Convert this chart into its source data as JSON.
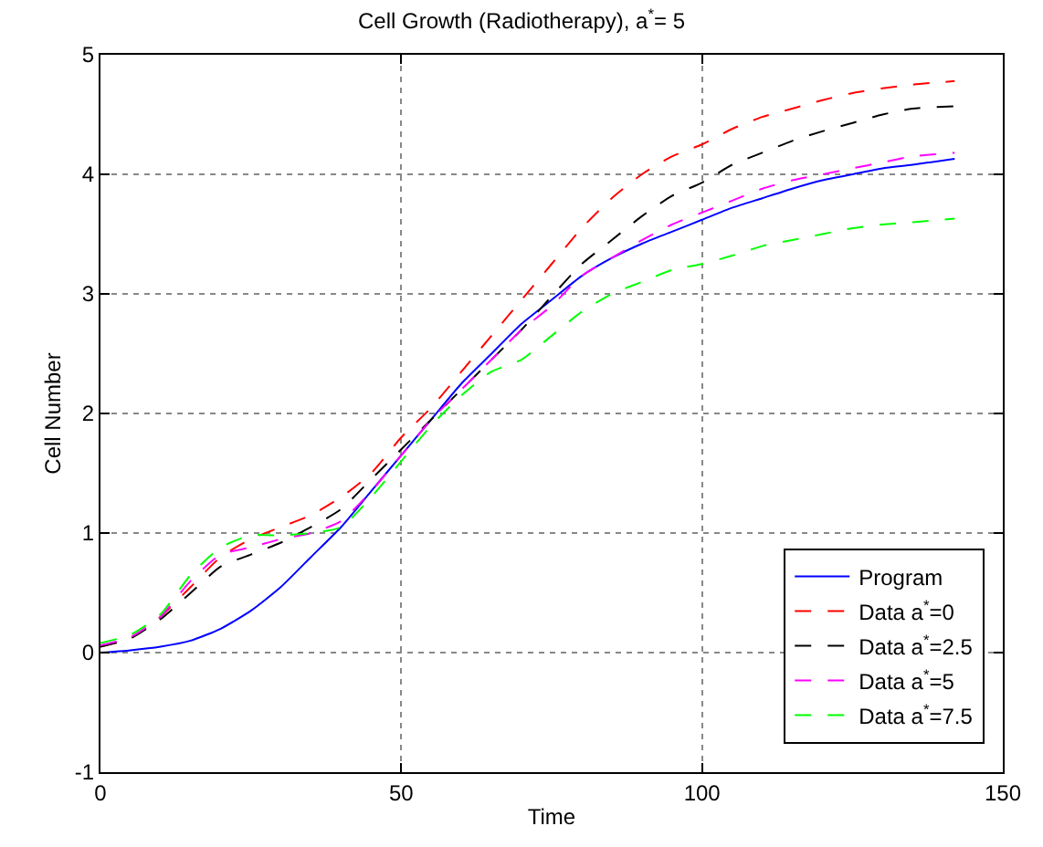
{
  "chart_data": {
    "type": "line",
    "title": "Cell Growth (Radiotherapy), a$^{*}$= 5",
    "xlabel": "Time",
    "ylabel": "Cell Number",
    "x": [
      0,
      5,
      10,
      15,
      20,
      25,
      30,
      35,
      40,
      45,
      50,
      55,
      60,
      65,
      70,
      75,
      80,
      85,
      90,
      95,
      100,
      105,
      110,
      115,
      120,
      125,
      130,
      135,
      142
    ],
    "xlim": [
      0,
      150
    ],
    "xticks": [
      0,
      50,
      100,
      150
    ],
    "ylim": [
      -1,
      5
    ],
    "yticks": [
      -1,
      0,
      1,
      2,
      3,
      4,
      5
    ],
    "grid": true,
    "legend": "bottom right",
    "series": [
      {
        "name": "Program",
        "color": "#0000ff",
        "line_style": "solid",
        "values": [
          0,
          0.02,
          0.05,
          0.1,
          0.2,
          0.35,
          0.55,
          0.8,
          1.05,
          1.35,
          1.65,
          1.95,
          2.25,
          2.5,
          2.75,
          2.95,
          3.15,
          3.3,
          3.42,
          3.52,
          3.62,
          3.72,
          3.8,
          3.88,
          3.95,
          4.0,
          4.05,
          4.08,
          4.13
        ]
      },
      {
        "name": "Data a$^{*}$=0",
        "color": "#ff0000",
        "line_style": "dashed",
        "values": [
          0.05,
          0.12,
          0.3,
          0.55,
          0.8,
          0.95,
          1.05,
          1.15,
          1.3,
          1.5,
          1.8,
          2.05,
          2.35,
          2.65,
          2.95,
          3.25,
          3.55,
          3.8,
          4.0,
          4.15,
          4.25,
          4.38,
          4.48,
          4.55,
          4.62,
          4.68,
          4.72,
          4.75,
          4.78
        ]
      },
      {
        "name": "Data a$^{*}$=2.5",
        "color": "#000000",
        "line_style": "dashed",
        "values": [
          0.05,
          0.12,
          0.28,
          0.5,
          0.72,
          0.82,
          0.92,
          1.05,
          1.2,
          1.45,
          1.7,
          1.95,
          2.2,
          2.45,
          2.7,
          2.98,
          3.25,
          3.45,
          3.65,
          3.82,
          3.93,
          4.08,
          4.18,
          4.28,
          4.36,
          4.43,
          4.5,
          4.55,
          4.57
        ]
      },
      {
        "name": "Data a$^{*}$=5",
        "color": "#ff00ff",
        "line_style": "dashed",
        "values": [
          0.06,
          0.13,
          0.3,
          0.6,
          0.82,
          0.88,
          0.95,
          1.0,
          1.1,
          1.35,
          1.65,
          1.95,
          2.2,
          2.45,
          2.7,
          2.9,
          3.15,
          3.3,
          3.45,
          3.58,
          3.68,
          3.78,
          3.88,
          3.95,
          4.0,
          4.05,
          4.1,
          4.15,
          4.18
        ]
      },
      {
        "name": "Data a$^{*}$=7.5",
        "color": "#00ff00",
        "line_style": "dashed",
        "values": [
          0.08,
          0.15,
          0.32,
          0.65,
          0.88,
          0.98,
          0.98,
          1.0,
          1.05,
          1.3,
          1.6,
          1.9,
          2.15,
          2.35,
          2.45,
          2.65,
          2.85,
          3.0,
          3.1,
          3.2,
          3.25,
          3.32,
          3.4,
          3.45,
          3.5,
          3.55,
          3.58,
          3.6,
          3.63
        ]
      }
    ]
  }
}
